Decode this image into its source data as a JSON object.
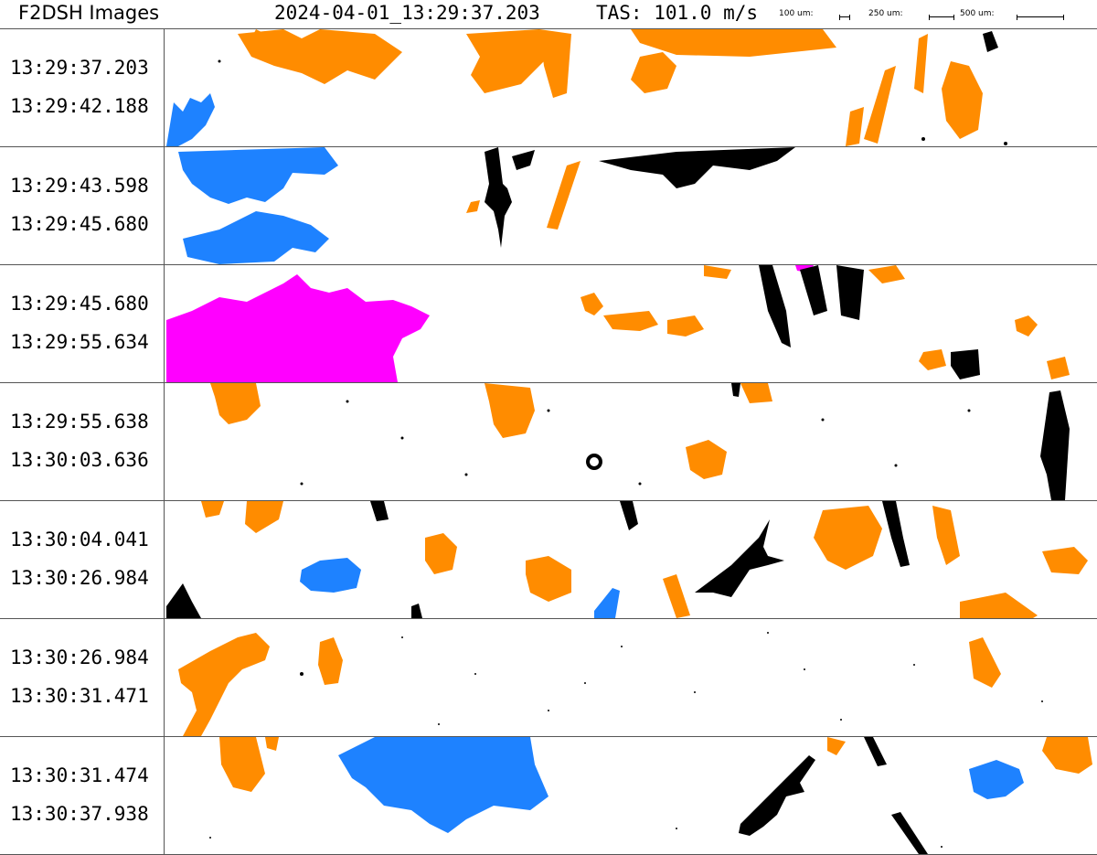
{
  "header": {
    "title": "F2DSH Images",
    "timestamp": "2024-04-01_13:29:37.203",
    "tas": "TAS: 101.0 m/s",
    "scale_100": "100 um:",
    "scale_250": "250 um:",
    "scale_500": "500 um:"
  },
  "colors": {
    "orange": "#ff8c00",
    "blue": "#1e82ff",
    "magenta": "#ff00ff",
    "black": "#000000"
  },
  "strips": [
    {
      "start": "13:29:37.203",
      "end": "13:29:42.188"
    },
    {
      "start": "13:29:43.598",
      "end": "13:29:45.680"
    },
    {
      "start": "13:29:45.680",
      "end": "13:29:55.634"
    },
    {
      "start": "13:29:55.638",
      "end": "13:30:03.636"
    },
    {
      "start": "13:30:04.041",
      "end": "13:30:26.984"
    },
    {
      "start": "13:30:26.984",
      "end": "13:30:31.471"
    },
    {
      "start": "13:30:31.474",
      "end": "13:30:37.938"
    }
  ]
}
